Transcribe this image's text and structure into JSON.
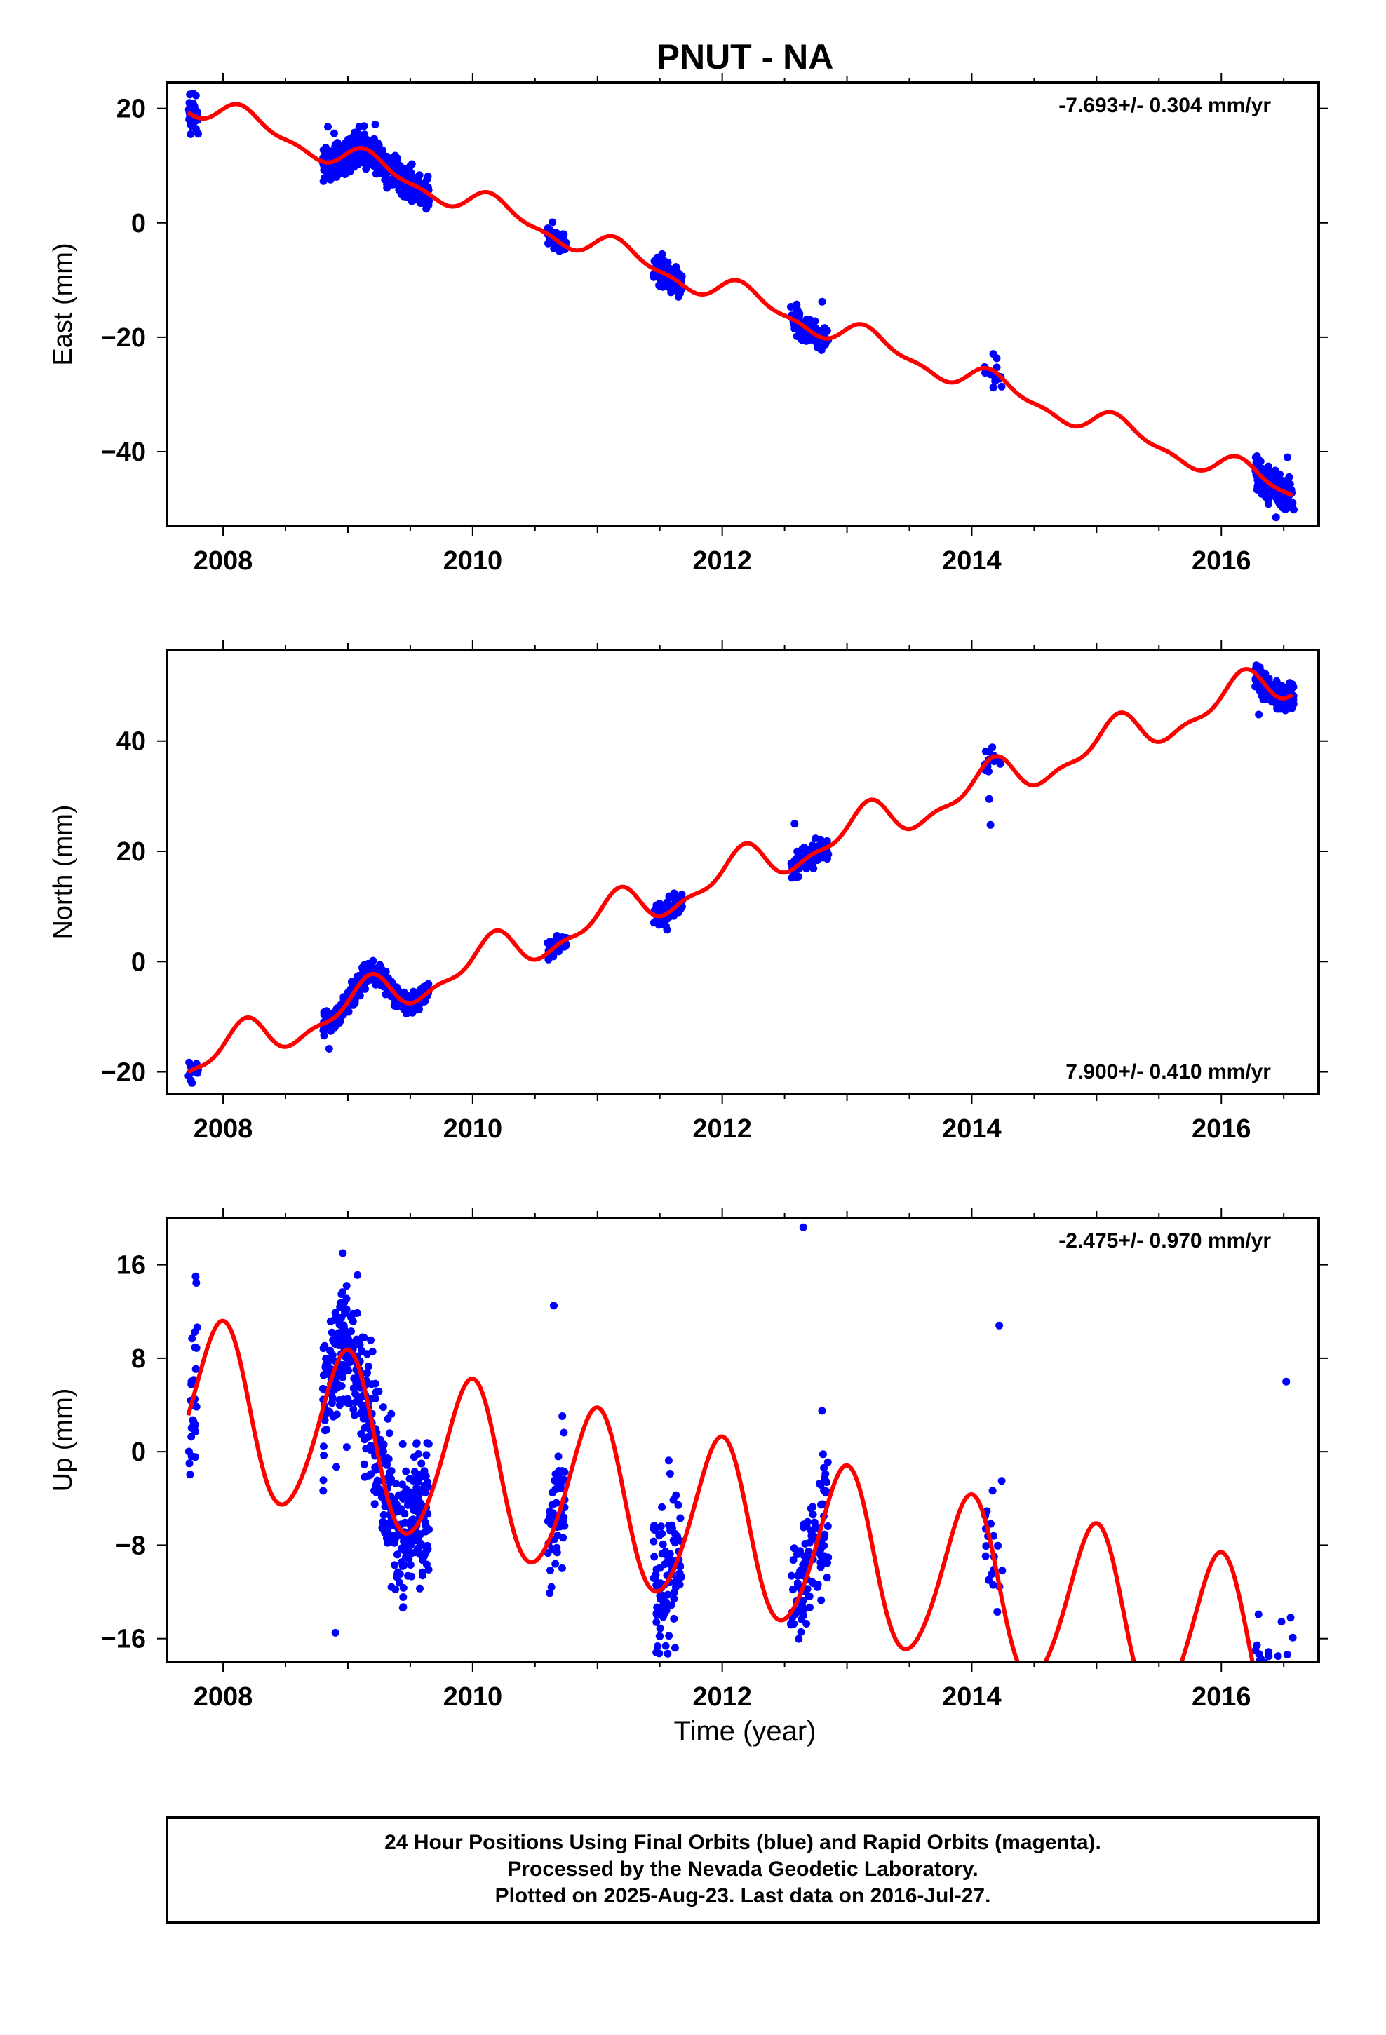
{
  "title": "PNUT - NA",
  "xlabel": "Time (year)",
  "colors": {
    "final_orbits": "#0000ff",
    "model_fit": "#ff0000",
    "frame": "#000000"
  },
  "footer": {
    "line1": "24 Hour Positions Using Final Orbits (blue) and Rapid Orbits (magenta).",
    "line2": "Processed by the Nevada Geodetic Laboratory.",
    "line3": "Plotted on 2025-Aug-23. Last data on 2016-Jul-27."
  },
  "chart_data": [
    {
      "type": "scatter",
      "ylabel": "East (mm)",
      "rate_label": "-7.693+/- 0.304 mm/yr",
      "rate_position": "top-right",
      "xlim": [
        2007.55,
        2016.78
      ],
      "ylim": [
        -53,
        24.5
      ],
      "xticks": [
        2008,
        2010,
        2012,
        2014,
        2016
      ],
      "yticks": [
        20,
        0,
        -20,
        -40
      ],
      "ytick_labels": [
        "20",
        "0",
        "−20",
        "−40"
      ],
      "trend": {
        "rate": -7.693,
        "at2008": 19.0
      },
      "seasonal": [
        [
          1.9,
          0.75
        ],
        [
          0.8,
          0.15
        ]
      ],
      "clusters": [
        {
          "x0": 2007.72,
          "x1": 2007.8,
          "n": 30,
          "spread": 1.5,
          "outliers": [
            [
              2007.74,
              15.5
            ],
            [
              2007.76,
              22.6
            ]
          ]
        },
        {
          "x0": 2008.8,
          "x1": 2009.65,
          "n": 420,
          "spread": 1.6,
          "outliers": [
            [
              2009.22,
              17.2
            ],
            [
              2008.84,
              16.8
            ]
          ]
        },
        {
          "x0": 2010.6,
          "x1": 2010.75,
          "n": 50,
          "spread": 0.9,
          "outliers": [
            [
              2010.64,
              0.1
            ]
          ]
        },
        {
          "x0": 2011.45,
          "x1": 2011.68,
          "n": 110,
          "spread": 1.1,
          "outliers": []
        },
        {
          "x0": 2012.55,
          "x1": 2012.85,
          "n": 110,
          "spread": 1.2,
          "outliers": [
            [
              2012.8,
              -13.8
            ]
          ]
        },
        {
          "x0": 2014.1,
          "x1": 2014.25,
          "n": 14,
          "spread": 1.6,
          "outliers": [
            [
              2014.15,
              -26.5
            ]
          ]
        },
        {
          "x0": 2016.27,
          "x1": 2016.58,
          "n": 170,
          "spread": 1.5,
          "outliers": [
            [
              2016.53,
              -41.0
            ]
          ]
        }
      ]
    },
    {
      "type": "scatter",
      "ylabel": "North (mm)",
      "rate_label": "7.900+/- 0.410 mm/yr",
      "rate_position": "bottom-right",
      "xlim": [
        2007.55,
        2016.78
      ],
      "ylim": [
        -24,
        56.5
      ],
      "xticks": [
        2008,
        2010,
        2012,
        2014,
        2016
      ],
      "yticks": [
        40,
        20,
        0,
        -20
      ],
      "ytick_labels": [
        "40",
        "20",
        "0",
        "−20"
      ],
      "trend": {
        "rate": 7.9,
        "at2008": -16.2
      },
      "seasonal": [
        [
          2.6,
          2.1
        ],
        [
          0.8,
          -1.1
        ]
      ],
      "clusters": [
        {
          "x0": 2007.72,
          "x1": 2007.8,
          "n": 18,
          "spread": 1.0,
          "outliers": [
            [
              2007.75,
              -22.0
            ]
          ]
        },
        {
          "x0": 2008.8,
          "x1": 2009.65,
          "n": 420,
          "spread": 1.0,
          "outliers": [
            [
              2008.85,
              -15.8
            ]
          ]
        },
        {
          "x0": 2010.6,
          "x1": 2010.75,
          "n": 40,
          "spread": 1.0,
          "outliers": []
        },
        {
          "x0": 2011.45,
          "x1": 2011.68,
          "n": 80,
          "spread": 1.1,
          "outliers": []
        },
        {
          "x0": 2012.55,
          "x1": 2012.85,
          "n": 100,
          "spread": 1.1,
          "outliers": [
            [
              2012.58,
              25.0
            ]
          ]
        },
        {
          "x0": 2014.1,
          "x1": 2014.25,
          "n": 18,
          "spread": 0.9,
          "outliers": [
            [
              2014.15,
              24.8
            ],
            [
              2014.14,
              29.5
            ]
          ]
        },
        {
          "x0": 2016.27,
          "x1": 2016.58,
          "n": 160,
          "spread": 1.2,
          "outliers": [
            [
              2016.3,
              44.8
            ]
          ]
        }
      ]
    },
    {
      "type": "scatter",
      "ylabel": "Up (mm)",
      "rate_label": "-2.475+/- 0.970 mm/yr",
      "rate_position": "top-right",
      "xlim": [
        2007.55,
        2016.78
      ],
      "ylim": [
        -18,
        20
      ],
      "xticks": [
        2008,
        2010,
        2012,
        2014,
        2016
      ],
      "yticks": [
        16,
        8,
        0,
        -8,
        -16
      ],
      "ytick_labels": [
        "16",
        "8",
        "0",
        "−8",
        "−16"
      ],
      "trend": {
        "rate": -2.475,
        "at2008": 3.5
      },
      "seasonal": [
        [
          -0.6,
          7.2
        ],
        [
          0.4,
          0.5
        ]
      ],
      "clusters": [
        {
          "x0": 2007.72,
          "x1": 2007.8,
          "n": 26,
          "spread": 4.0,
          "outliers": [
            [
              2007.73,
              -1.0
            ],
            [
              2007.78,
              15.0
            ]
          ]
        },
        {
          "x0": 2008.8,
          "x1": 2009.65,
          "n": 460,
          "spread": 3.0,
          "outliers": [
            [
              2008.9,
              -15.5
            ],
            [
              2008.96,
              17.0
            ],
            [
              2009.44,
              -9.8
            ],
            [
              2008.99,
              14.2
            ]
          ]
        },
        {
          "x0": 2010.6,
          "x1": 2010.75,
          "n": 50,
          "spread": 2.5,
          "outliers": [
            [
              2010.65,
              12.5
            ],
            [
              2010.64,
              -3.5
            ]
          ]
        },
        {
          "x0": 2011.45,
          "x1": 2011.68,
          "n": 110,
          "spread": 3.2,
          "outliers": [
            [
              2011.5,
              -15.8
            ]
          ]
        },
        {
          "x0": 2012.55,
          "x1": 2012.85,
          "n": 110,
          "spread": 3.0,
          "outliers": [
            [
              2012.65,
              19.2
            ],
            [
              2012.8,
              3.5
            ]
          ]
        },
        {
          "x0": 2014.1,
          "x1": 2014.25,
          "n": 18,
          "spread": 2.2,
          "outliers": [
            [
              2014.22,
              10.8
            ],
            [
              2014.24,
              -2.5
            ]
          ]
        },
        {
          "x0": 2016.27,
          "x1": 2016.58,
          "n": 170,
          "spread": 3.6,
          "outliers": [
            [
              2016.38,
              -17.5
            ],
            [
              2016.52,
              6.0
            ]
          ]
        }
      ]
    }
  ]
}
